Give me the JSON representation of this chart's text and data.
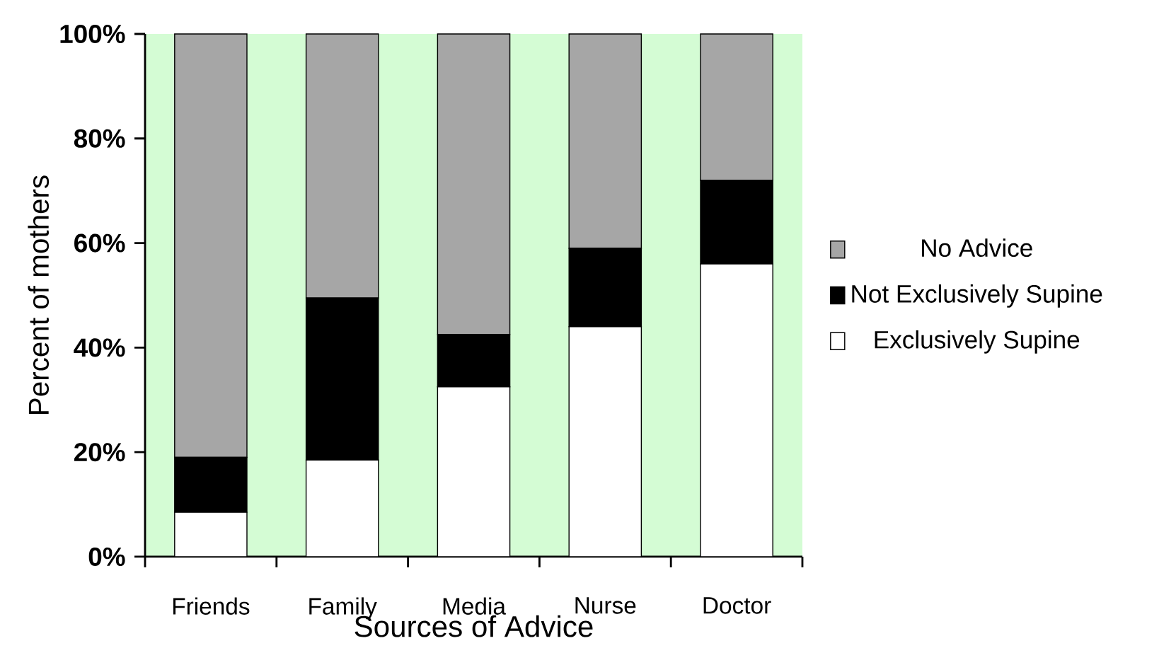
{
  "chart_data": {
    "type": "bar",
    "stacked": true,
    "xlabel": "Sources of Advice",
    "ylabel": "Percent of mothers",
    "categories": [
      "Friends",
      "Family",
      "Media",
      "Nurse",
      "Doctor"
    ],
    "series": [
      {
        "name": "Exclusively Supine",
        "color": "#ffffff",
        "values": [
          8.5,
          18.5,
          32.5,
          44,
          56
        ]
      },
      {
        "name": "Not Exclusively Supine",
        "color": "#000000",
        "values": [
          10.5,
          31,
          10,
          15,
          16
        ]
      },
      {
        "name": "No Advice",
        "color": "#a6a6a6",
        "values": [
          81,
          50.5,
          57.5,
          41,
          28
        ]
      }
    ],
    "ylim": [
      0,
      100
    ],
    "yticks": [
      {
        "value": 0,
        "label": "0%"
      },
      {
        "value": 20,
        "label": "20%"
      },
      {
        "value": 40,
        "label": "40%"
      },
      {
        "value": 60,
        "label": "60%"
      },
      {
        "value": 80,
        "label": "80%"
      },
      {
        "value": 100,
        "label": "100%"
      }
    ],
    "legend": "right",
    "grid": false
  }
}
